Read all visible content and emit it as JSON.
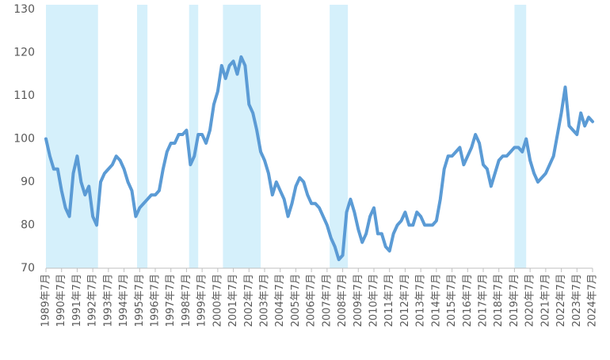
{
  "chart_data": {
    "type": "line",
    "x": [
      "1989-07",
      "1989-10",
      "1990-01",
      "1990-04",
      "1990-07",
      "1990-10",
      "1991-01",
      "1991-04",
      "1991-07",
      "1991-10",
      "1992-01",
      "1992-04",
      "1992-07",
      "1992-10",
      "1993-01",
      "1993-04",
      "1993-07",
      "1993-10",
      "1994-01",
      "1994-04",
      "1994-07",
      "1994-10",
      "1995-01",
      "1995-04",
      "1995-07",
      "1995-10",
      "1996-01",
      "1996-04",
      "1996-07",
      "1996-10",
      "1997-01",
      "1997-04",
      "1997-07",
      "1997-10",
      "1998-01",
      "1998-04",
      "1998-07",
      "1998-10",
      "1999-01",
      "1999-04",
      "1999-07",
      "1999-10",
      "2000-01",
      "2000-04",
      "2000-07",
      "2000-10",
      "2001-01",
      "2001-04",
      "2001-07",
      "2001-10",
      "2002-01",
      "2002-04",
      "2002-07",
      "2002-10",
      "2003-01",
      "2003-04",
      "2003-07",
      "2003-10",
      "2004-01",
      "2004-04",
      "2004-07",
      "2004-10",
      "2005-01",
      "2005-04",
      "2005-07",
      "2005-10",
      "2006-01",
      "2006-04",
      "2006-07",
      "2006-10",
      "2007-01",
      "2007-04",
      "2007-07",
      "2007-10",
      "2008-01",
      "2008-04",
      "2008-07",
      "2008-10",
      "2009-01",
      "2009-04",
      "2009-07",
      "2009-10",
      "2010-01",
      "2010-04",
      "2010-07",
      "2010-10",
      "2011-01",
      "2011-04",
      "2011-07",
      "2011-10",
      "2012-01",
      "2012-04",
      "2012-07",
      "2012-10",
      "2013-01",
      "2013-04",
      "2013-07",
      "2013-10",
      "2014-01",
      "2014-04",
      "2014-07",
      "2014-10",
      "2015-01",
      "2015-04",
      "2015-07",
      "2015-10",
      "2016-01",
      "2016-04",
      "2016-07",
      "2016-10",
      "2017-01",
      "2017-04",
      "2017-07",
      "2017-10",
      "2018-01",
      "2018-04",
      "2018-07",
      "2018-10",
      "2019-01",
      "2019-04",
      "2019-07",
      "2019-10",
      "2020-01",
      "2020-04",
      "2020-07",
      "2020-10",
      "2021-01",
      "2021-04",
      "2021-07",
      "2021-10",
      "2022-01",
      "2022-04",
      "2022-07",
      "2022-10",
      "2023-01",
      "2023-04",
      "2023-07",
      "2023-10",
      "2024-01",
      "2024-04",
      "2024-07"
    ],
    "values": [
      100,
      96,
      93,
      93,
      88,
      84,
      82,
      92,
      96,
      90,
      87,
      89,
      82,
      80,
      90,
      92,
      93,
      94,
      96,
      95,
      93,
      90,
      88,
      82,
      84,
      85,
      86,
      87,
      87,
      88,
      93,
      97,
      99,
      99,
      101,
      101,
      102,
      94,
      96,
      101,
      101,
      99,
      102,
      108,
      111,
      117,
      114,
      117,
      118,
      115,
      119,
      117,
      108,
      106,
      102,
      97,
      95,
      92,
      87,
      90,
      88,
      86,
      82,
      85,
      89,
      91,
      90,
      87,
      85,
      85,
      84,
      82,
      80,
      77,
      75,
      72,
      73,
      83,
      86,
      83,
      79,
      76,
      78,
      82,
      84,
      78,
      78,
      75,
      74,
      78,
      80,
      81,
      83,
      80,
      80,
      83,
      82,
      80,
      80,
      80,
      81,
      86,
      93,
      96,
      96,
      97,
      98,
      94,
      96,
      98,
      101,
      99,
      94,
      93,
      89,
      92,
      95,
      96,
      96,
      97,
      98,
      98,
      97,
      100,
      95,
      92,
      90,
      91,
      92,
      94,
      96,
      101,
      106,
      112,
      103,
      102,
      101,
      106,
      103,
      105,
      104
    ],
    "color": "#5b9bd5",
    "shaded_periods": [
      {
        "start": "1989-07",
        "end": "1992-11"
      },
      {
        "start": "1995-05",
        "end": "1996-01"
      },
      {
        "start": "1998-09",
        "end": "1999-04"
      },
      {
        "start": "2000-11",
        "end": "2003-04"
      },
      {
        "start": "2007-09",
        "end": "2008-11"
      },
      {
        "start": "2019-07",
        "end": "2020-04"
      }
    ],
    "band_color": "#d5f0fb",
    "ylim": [
      70,
      130
    ],
    "yticks": [
      70,
      80,
      90,
      100,
      110,
      120,
      130
    ],
    "xlim": [
      "1989-07",
      "2024-07"
    ],
    "xticks": [
      {
        "value": "1989-07",
        "label": "1989年7月"
      },
      {
        "value": "1990-07",
        "label": "1990年7月"
      },
      {
        "value": "1991-07",
        "label": "1991年7月"
      },
      {
        "value": "1992-07",
        "label": "1992年7月"
      },
      {
        "value": "1993-07",
        "label": "1993年7月"
      },
      {
        "value": "1994-07",
        "label": "1994年7月"
      },
      {
        "value": "1995-07",
        "label": "1995年7月"
      },
      {
        "value": "1996-07",
        "label": "1996年7月"
      },
      {
        "value": "1997-07",
        "label": "1997年7月"
      },
      {
        "value": "1998-07",
        "label": "1998年7月"
      },
      {
        "value": "1999-07",
        "label": "1999年7月"
      },
      {
        "value": "2000-07",
        "label": "2000年7月"
      },
      {
        "value": "2001-07",
        "label": "2001年7月"
      },
      {
        "value": "2002-07",
        "label": "2002年7月"
      },
      {
        "value": "2003-07",
        "label": "2003年7月"
      },
      {
        "value": "2004-07",
        "label": "2004年7月"
      },
      {
        "value": "2005-07",
        "label": "2005年7月"
      },
      {
        "value": "2006-07",
        "label": "2006年7月"
      },
      {
        "value": "2007-07",
        "label": "2007年7月"
      },
      {
        "value": "2008-07",
        "label": "2008年7月"
      },
      {
        "value": "2009-07",
        "label": "2009年7月"
      },
      {
        "value": "2010-07",
        "label": "2010年7月"
      },
      {
        "value": "2011-07",
        "label": "2011年7月"
      },
      {
        "value": "2012-07",
        "label": "2012年7月"
      },
      {
        "value": "2013-07",
        "label": "2013年7月"
      },
      {
        "value": "2014-07",
        "label": "2014年7月"
      },
      {
        "value": "2015-07",
        "label": "2015年7月"
      },
      {
        "value": "2016-07",
        "label": "2016年7月"
      },
      {
        "value": "2017-07",
        "label": "2017年7月"
      },
      {
        "value": "2018-07",
        "label": "2018年7月"
      },
      {
        "value": "2019-07",
        "label": "2019年7月"
      },
      {
        "value": "2020-07",
        "label": "2020年7月"
      },
      {
        "value": "2021-07",
        "label": "2021年7月"
      },
      {
        "value": "2022-07",
        "label": "2022年7月"
      },
      {
        "value": "2023-07",
        "label": "2023年7月"
      },
      {
        "value": "2024-07",
        "label": "2024年7月"
      }
    ]
  }
}
